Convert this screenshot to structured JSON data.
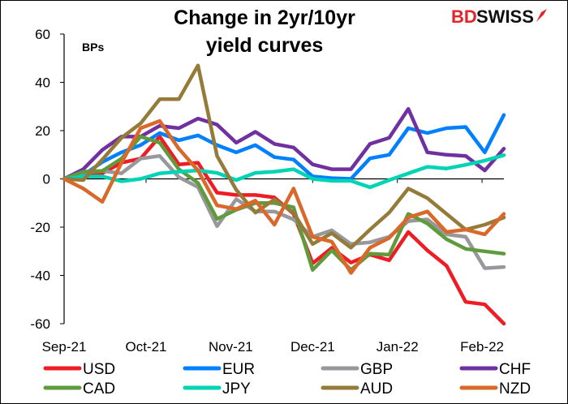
{
  "chart_data": {
    "type": "line",
    "title_lines": [
      "Change in 2yr/10yr",
      "yield curves"
    ],
    "ylabel": "BPs",
    "ylim": [
      -60,
      60
    ],
    "yticks": [
      60,
      40,
      20,
      0,
      -20,
      -40,
      -60
    ],
    "x_start": "2021-09-01",
    "x_end": "2022-02-09",
    "x": [
      "2021-09-01",
      "2021-09-08",
      "2021-09-15",
      "2021-09-22",
      "2021-09-29",
      "2021-10-06",
      "2021-10-13",
      "2021-10-20",
      "2021-10-27",
      "2021-11-03",
      "2021-11-10",
      "2021-11-17",
      "2021-11-24",
      "2021-12-01",
      "2021-12-08",
      "2021-12-15",
      "2021-12-22",
      "2021-12-29",
      "2022-01-05",
      "2022-01-12",
      "2022-01-19",
      "2022-01-26",
      "2022-02-02",
      "2022-02-09"
    ],
    "xticks": [
      {
        "date": "2021-09-01",
        "label": "Sep-21"
      },
      {
        "date": "2021-10-01",
        "label": "Oct-21"
      },
      {
        "date": "2021-11-01",
        "label": "Nov-21"
      },
      {
        "date": "2021-12-01",
        "label": "Dec-21"
      },
      {
        "date": "2022-01-01",
        "label": "Jan-22"
      },
      {
        "date": "2022-02-01",
        "label": "Feb-22"
      }
    ],
    "grid": false,
    "legend_placement": "bottom",
    "series": [
      {
        "name": "USD",
        "color": "#ee1c25",
        "values": [
          0,
          2.3,
          2.3,
          6.7,
          8.4,
          17.5,
          6,
          6.7,
          -5.7,
          -6.7,
          -6.7,
          -7.7,
          -14.5,
          -35,
          -28.6,
          -34.7,
          -31.4,
          -33.7,
          -22,
          -29.6,
          -36,
          -51,
          -52,
          -60
        ]
      },
      {
        "name": "EUR",
        "color": "#0080ff",
        "values": [
          0,
          1.5,
          7,
          11,
          14,
          19,
          16,
          18,
          14,
          11,
          14,
          9,
          8,
          1,
          0.3,
          0,
          8.5,
          10,
          21,
          19,
          21,
          21.5,
          11,
          26.5
        ]
      },
      {
        "name": "GBP",
        "color": "#98989c",
        "values": [
          0,
          2.7,
          3.3,
          2.3,
          8.4,
          9.5,
          0.7,
          -3.4,
          -19.6,
          -8.4,
          -13.5,
          -13.5,
          -16.8,
          -24,
          -21.3,
          -27,
          -26.3,
          -24,
          -17.5,
          -16.8,
          -23,
          -24,
          -37,
          -36.5
        ]
      },
      {
        "name": "CHF",
        "color": "#7030a0",
        "values": [
          0,
          4,
          12,
          17.5,
          17.5,
          22,
          21,
          25,
          22.5,
          15,
          19.5,
          14.5,
          13,
          6,
          4,
          4,
          14.5,
          17,
          29,
          11,
          10,
          9.5,
          3.5,
          12.5
        ]
      },
      {
        "name": "CAD",
        "color": "#5f9b3c",
        "values": [
          0,
          3,
          3.3,
          8.4,
          17.5,
          15,
          4,
          -1.7,
          -16.6,
          -12.8,
          -10,
          -10,
          -11.8,
          -37.7,
          -29.6,
          -37.7,
          -31,
          -31.4,
          -14.5,
          -18.5,
          -25,
          -29,
          -30,
          -31
        ]
      },
      {
        "name": "JPY",
        "color": "#00d4b4",
        "values": [
          0,
          1,
          1,
          -1,
          0,
          2.3,
          3,
          3.5,
          2.5,
          -0.5,
          2.5,
          3,
          4,
          0,
          -0.8,
          -0.8,
          -3.5,
          -0.5,
          2.3,
          5,
          4.3,
          5.8,
          7.6,
          9.8
        ]
      },
      {
        "name": "AUD",
        "color": "#957b39",
        "values": [
          0,
          -0.5,
          8,
          17,
          23,
          33,
          33,
          47,
          9.5,
          -4.5,
          -14,
          -8.5,
          -14,
          -27,
          -22.5,
          -28.5,
          -21,
          -14,
          -4,
          -8,
          -14.5,
          -21,
          -19,
          -16
        ]
      },
      {
        "name": "NZD",
        "color": "#d9692a",
        "values": [
          0,
          -4,
          -9.5,
          6.7,
          21,
          24,
          12.5,
          3.5,
          -11,
          -12.5,
          -9,
          -19,
          -4,
          -24,
          -26,
          -39,
          -28.5,
          -24.5,
          -16,
          -13.5,
          -22,
          -21,
          -23,
          -14.5
        ]
      }
    ]
  },
  "logo": {
    "text_red": "BD",
    "text_black": "SWISS",
    "red": "#e5232a"
  }
}
